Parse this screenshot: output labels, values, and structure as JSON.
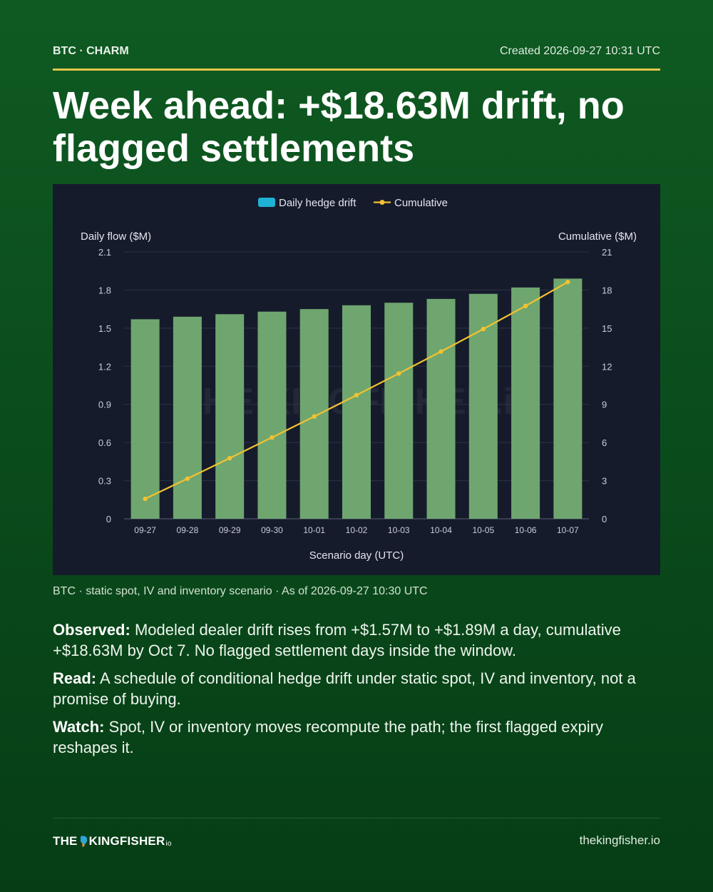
{
  "header": {
    "tag": "BTC · CHARM",
    "created": "Created 2026-09-27 10:31 UTC",
    "headline": "Week ahead: +$18.63M drift, no flagged settlements"
  },
  "chart_data": {
    "type": "bar",
    "categories": [
      "09-27",
      "09-28",
      "09-29",
      "09-30",
      "10-01",
      "10-02",
      "10-03",
      "10-04",
      "10-05",
      "10-06",
      "10-07"
    ],
    "series": [
      {
        "name": "Daily hedge drift",
        "type": "bar",
        "axis": "left",
        "values": [
          1.57,
          1.59,
          1.61,
          1.63,
          1.65,
          1.68,
          1.7,
          1.73,
          1.77,
          1.82,
          1.89
        ]
      },
      {
        "name": "Cumulative",
        "type": "line",
        "axis": "right",
        "values": [
          1.57,
          3.16,
          4.77,
          6.4,
          8.05,
          9.73,
          11.43,
          13.16,
          14.93,
          16.75,
          18.63
        ]
      }
    ],
    "xlabel": "Scenario day (UTC)",
    "ylabel": "Daily flow ($M)",
    "y2label": "Cumulative ($M)",
    "ylim": [
      0,
      2.1
    ],
    "y2lim": [
      0,
      21
    ],
    "yticks": [
      "0",
      "0.3",
      "0.6",
      "0.9",
      "1.2",
      "1.5",
      "1.8",
      "2.1"
    ],
    "y2ticks": [
      "0",
      "3",
      "6",
      "9",
      "12",
      "15",
      "18",
      "21"
    ],
    "grid": true,
    "legend": "top-center",
    "colors": {
      "bar": "#6fa66f",
      "line": "#f2c230",
      "legend_bar": "#1fb1d6",
      "panel": "#161b2c"
    },
    "watermark": "THE KINGFISHER.io"
  },
  "caption": "BTC · static spot, IV and inventory scenario · As of 2026-09-27 10:30 UTC",
  "notes": [
    {
      "label": "Observed:",
      "text": "Modeled dealer drift rises from +$1.57M to +$1.89M a day, cumulative +$18.63M by Oct 7. No flagged settlement days inside the window."
    },
    {
      "label": "Read:",
      "text": "A schedule of conditional hedge drift under static spot, IV and inventory, not a promise of buying."
    },
    {
      "label": "Watch:",
      "text": "Spot, IV or inventory moves recompute the path; the first flagged expiry reshapes it."
    }
  ],
  "footer": {
    "logo_left": "THE",
    "logo_right": "KINGFISHER",
    "logo_suffix": "io",
    "url": "thekingfisher.io"
  }
}
